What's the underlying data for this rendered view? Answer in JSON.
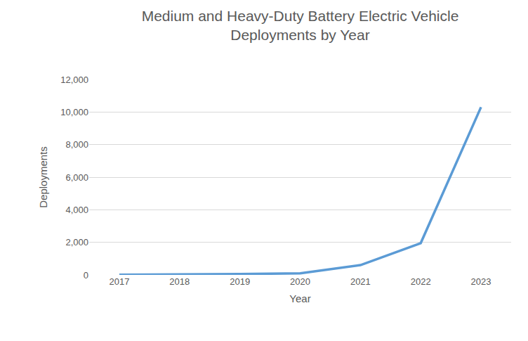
{
  "chart_data": {
    "type": "line",
    "title": "Medium and Heavy-Duty Battery Electric Vehicle\nDeployments by Year",
    "x_label": "Year",
    "y_label": "Deployments",
    "categories": [
      "2017",
      "2018",
      "2019",
      "2020",
      "2021",
      "2022",
      "2023"
    ],
    "values": [
      10,
      15,
      50,
      100,
      600,
      1950,
      10300
    ],
    "color": "#5b9bd5",
    "ylim": [
      0,
      12000
    ],
    "yticks": [
      0,
      {
        "value": 2000,
        "label": "2,000"
      },
      {
        "value": 4000,
        "label": "4,000"
      },
      {
        "value": 6000,
        "label": "6,000"
      },
      {
        "value": 8000,
        "label": "8,000"
      },
      {
        "value": 10000,
        "label": "10,000"
      },
      {
        "value": 12000,
        "label": "12,000"
      }
    ],
    "grid": true
  }
}
